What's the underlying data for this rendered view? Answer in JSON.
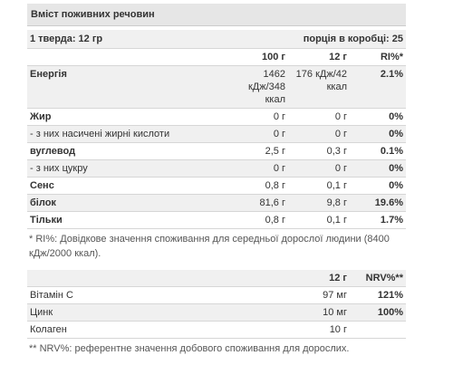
{
  "table1": {
    "title": "Вміст поживних речовин",
    "serving": {
      "left": "1 тверда: 12 гр",
      "right": "порція в коробці: 25"
    },
    "columns": [
      "100 г",
      "12 г",
      "RI%*"
    ],
    "rows": [
      [
        "Енергія",
        "1462 кДж/348 ккал",
        "176 кДж/42 ккал",
        "2.1%"
      ],
      [
        "Жир",
        "0 г",
        "0 г",
        "0%"
      ],
      [
        "- з них насичені жирні кислоти",
        "0 г",
        "0 г",
        "0%"
      ],
      [
        "вуглевод",
        "2,5 г",
        "0,3 г",
        "0.1%"
      ],
      [
        "- з них цукру",
        "0 г",
        "0 г",
        "0%"
      ],
      [
        "Сенс",
        "0,8 г",
        "0,1 г",
        "0%"
      ],
      [
        "білок",
        "81,6 г",
        "9,8 г",
        "19.6%"
      ],
      [
        "Тільки",
        "0,8 г",
        "0,1 г",
        "1.7%"
      ]
    ],
    "footnote": "* RI%: Довідкове значення споживання для середньої дорослої людини (8400 кДж/2000 ккал)."
  },
  "table2": {
    "columns": [
      "12 г",
      "NRV%**"
    ],
    "rows": [
      [
        "Вітамін С",
        "97 мг",
        "121%"
      ],
      [
        "Цинк",
        "10 мг",
        "100%"
      ],
      [
        "Колаген",
        "10 г"
      ]
    ],
    "footnote": "** NRV%: референтне значення добового споживання для дорослих."
  }
}
